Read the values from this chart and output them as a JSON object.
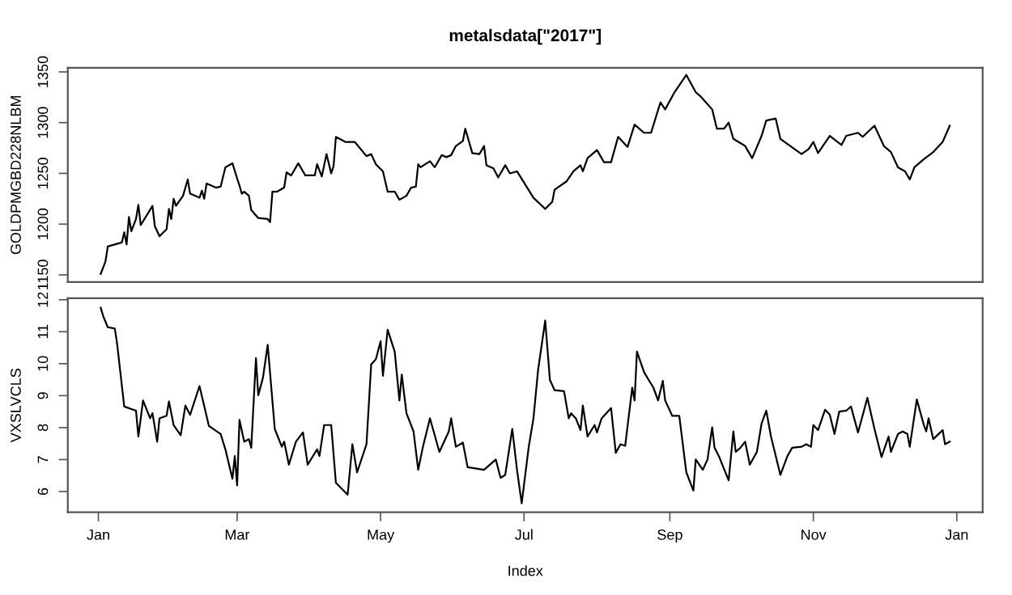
{
  "chart_data": [
    {
      "type": "line",
      "title": "metalsdata[\"2017\"]",
      "ylabel": "GOLDPMGBD228NLBM",
      "color": "#000000",
      "tick_labels": "y",
      "xlim": [
        "2016-12-19",
        "2018-01-12"
      ],
      "ylim": [
        1143,
        1354
      ],
      "yticks": [
        1150,
        1200,
        1250,
        1300,
        1350
      ],
      "x": [
        "2017-01-02",
        "2017-01-04",
        "2017-01-05",
        "2017-01-08",
        "2017-01-11",
        "2017-01-12",
        "2017-01-13",
        "2017-01-14",
        "2017-01-15",
        "2017-01-17",
        "2017-01-18",
        "2017-01-19",
        "2017-01-24",
        "2017-01-25",
        "2017-01-27",
        "2017-01-30",
        "2017-01-31",
        "2017-02-01",
        "2017-02-02",
        "2017-02-03",
        "2017-02-06",
        "2017-02-08",
        "2017-02-09",
        "2017-02-13",
        "2017-02-14",
        "2017-02-15",
        "2017-02-16",
        "2017-02-20",
        "2017-02-22",
        "2017-02-24",
        "2017-02-27",
        "2017-03-01",
        "2017-03-02",
        "2017-03-03",
        "2017-03-04",
        "2017-03-06",
        "2017-03-07",
        "2017-03-10",
        "2017-03-14",
        "2017-03-15",
        "2017-03-16",
        "2017-03-18",
        "2017-03-21",
        "2017-03-22",
        "2017-03-24",
        "2017-03-27",
        "2017-03-30",
        "2017-04-03",
        "2017-04-04",
        "2017-04-06",
        "2017-04-08",
        "2017-04-10",
        "2017-04-11",
        "2017-04-12",
        "2017-04-16",
        "2017-04-20",
        "2017-04-25",
        "2017-04-27",
        "2017-04-29",
        "2017-05-02",
        "2017-05-04",
        "2017-05-07",
        "2017-05-09",
        "2017-05-12",
        "2017-05-14",
        "2017-05-16",
        "2017-05-17",
        "2017-05-18",
        "2017-05-22",
        "2017-05-24",
        "2017-05-27",
        "2017-05-29",
        "2017-05-31",
        "2017-06-02",
        "2017-06-05",
        "2017-06-06",
        "2017-06-09",
        "2017-06-12",
        "2017-06-14",
        "2017-06-15",
        "2017-06-18",
        "2017-06-20",
        "2017-06-23",
        "2017-06-25",
        "2017-06-28",
        "2017-07-05",
        "2017-07-10",
        "2017-07-13",
        "2017-07-14",
        "2017-07-19",
        "2017-07-22",
        "2017-07-25",
        "2017-07-26",
        "2017-07-28",
        "2017-08-01",
        "2017-08-04",
        "2017-08-07",
        "2017-08-10",
        "2017-08-14",
        "2017-08-17",
        "2017-08-21",
        "2017-08-24",
        "2017-08-28",
        "2017-08-30",
        "2017-09-03",
        "2017-09-08",
        "2017-09-12",
        "2017-09-14",
        "2017-09-19",
        "2017-09-21",
        "2017-09-24",
        "2017-09-26",
        "2017-09-28",
        "2017-10-03",
        "2017-10-06",
        "2017-10-10",
        "2017-10-12",
        "2017-10-16",
        "2017-10-18",
        "2017-10-21",
        "2017-10-27",
        "2017-10-30",
        "2017-11-01",
        "2017-11-03",
        "2017-11-08",
        "2017-11-13",
        "2017-11-15",
        "2017-11-20",
        "2017-11-22",
        "2017-11-27",
        "2017-12-01",
        "2017-12-04",
        "2017-12-07",
        "2017-12-10",
        "2017-12-12",
        "2017-12-14",
        "2017-12-18",
        "2017-12-22",
        "2017-12-26",
        "2017-12-29"
      ],
      "values": [
        1151,
        1163,
        1178,
        1180,
        1182,
        1192,
        1180,
        1207,
        1193,
        1205,
        1219,
        1199,
        1218,
        1198,
        1188,
        1195,
        1215,
        1205,
        1225,
        1218,
        1228,
        1244,
        1230,
        1226,
        1233,
        1225,
        1240,
        1236,
        1237,
        1256,
        1260,
        1245,
        1238,
        1230,
        1232,
        1228,
        1214,
        1206,
        1205,
        1202,
        1232,
        1232,
        1236,
        1251,
        1248,
        1260,
        1248,
        1248,
        1259,
        1247,
        1269,
        1250,
        1257,
        1286,
        1281,
        1281,
        1267,
        1269,
        1259,
        1252,
        1232,
        1232,
        1224,
        1228,
        1236,
        1237,
        1259,
        1256,
        1262,
        1256,
        1268,
        1266,
        1268,
        1277,
        1282,
        1294,
        1270,
        1269,
        1277,
        1258,
        1255,
        1246,
        1258,
        1250,
        1252,
        1226,
        1215,
        1222,
        1234,
        1242,
        1252,
        1258,
        1252,
        1265,
        1273,
        1261,
        1261,
        1286,
        1276,
        1298,
        1290,
        1290,
        1320,
        1313,
        1330,
        1347,
        1330,
        1326,
        1313,
        1294,
        1294,
        1300,
        1284,
        1277,
        1265,
        1287,
        1302,
        1304,
        1284,
        1279,
        1269,
        1274,
        1281,
        1270,
        1287,
        1278,
        1287,
        1290,
        1286,
        1297,
        1277,
        1271,
        1256,
        1252,
        1244,
        1256,
        1264,
        1271,
        1281,
        1297
      ]
    },
    {
      "type": "line",
      "ylabel": "VXSLVCLS",
      "xlabel": "Index",
      "color": "#000000",
      "xlim": [
        "2016-12-19",
        "2018-01-12"
      ],
      "ylim": [
        5.35,
        12.05
      ],
      "yticks": [
        6,
        7,
        8,
        9,
        10,
        11,
        12
      ],
      "xticks": [
        {
          "value": "2017-01-01",
          "label": "Jan"
        },
        {
          "value": "2017-03-01",
          "label": "Mar"
        },
        {
          "value": "2017-05-01",
          "label": "May"
        },
        {
          "value": "2017-07-01",
          "label": "Jul"
        },
        {
          "value": "2017-09-01",
          "label": "Sep"
        },
        {
          "value": "2017-11-01",
          "label": "Nov"
        },
        {
          "value": "2018-01-01",
          "label": "Jan"
        }
      ],
      "x": [
        "2017-01-02",
        "2017-01-03",
        "2017-01-05",
        "2017-01-08",
        "2017-01-09",
        "2017-01-12",
        "2017-01-17",
        "2017-01-18",
        "2017-01-20",
        "2017-01-23",
        "2017-01-24",
        "2017-01-26",
        "2017-01-27",
        "2017-01-30",
        "2017-01-31",
        "2017-02-02",
        "2017-02-05",
        "2017-02-07",
        "2017-02-09",
        "2017-02-13",
        "2017-02-17",
        "2017-02-22",
        "2017-02-24",
        "2017-02-27",
        "2017-02-28",
        "2017-03-01",
        "2017-03-02",
        "2017-03-04",
        "2017-03-06",
        "2017-03-07",
        "2017-03-09",
        "2017-03-10",
        "2017-03-12",
        "2017-03-14",
        "2017-03-17",
        "2017-03-20",
        "2017-03-21",
        "2017-03-23",
        "2017-03-26",
        "2017-03-29",
        "2017-03-31",
        "2017-04-04",
        "2017-04-05",
        "2017-04-07",
        "2017-04-10",
        "2017-04-12",
        "2017-04-17",
        "2017-04-19",
        "2017-04-21",
        "2017-04-25",
        "2017-04-27",
        "2017-04-29",
        "2017-05-01",
        "2017-05-02",
        "2017-05-04",
        "2017-05-07",
        "2017-05-09",
        "2017-05-10",
        "2017-05-12",
        "2017-05-15",
        "2017-05-17",
        "2017-05-19",
        "2017-05-22",
        "2017-05-26",
        "2017-05-30",
        "2017-05-31",
        "2017-06-02",
        "2017-06-05",
        "2017-06-07",
        "2017-06-14",
        "2017-06-19",
        "2017-06-21",
        "2017-06-23",
        "2017-06-26",
        "2017-06-28",
        "2017-06-30",
        "2017-07-03",
        "2017-07-05",
        "2017-07-07",
        "2017-07-10",
        "2017-07-12",
        "2017-07-14",
        "2017-07-18",
        "2017-07-20",
        "2017-07-21",
        "2017-07-23",
        "2017-07-25",
        "2017-07-26",
        "2017-07-28",
        "2017-07-31",
        "2017-08-01",
        "2017-08-03",
        "2017-08-07",
        "2017-08-09",
        "2017-08-11",
        "2017-08-13",
        "2017-08-16",
        "2017-08-17",
        "2017-08-18",
        "2017-08-21",
        "2017-08-23",
        "2017-08-25",
        "2017-08-27",
        "2017-08-29",
        "2017-08-30",
        "2017-09-02",
        "2017-09-05",
        "2017-09-08",
        "2017-09-11",
        "2017-09-12",
        "2017-09-15",
        "2017-09-17",
        "2017-09-19",
        "2017-09-20",
        "2017-09-22",
        "2017-09-26",
        "2017-09-28",
        "2017-09-29",
        "2017-10-01",
        "2017-10-03",
        "2017-10-05",
        "2017-10-08",
        "2017-10-10",
        "2017-10-12",
        "2017-10-14",
        "2017-10-18",
        "2017-10-21",
        "2017-10-23",
        "2017-10-27",
        "2017-10-29",
        "2017-10-31",
        "2017-11-01",
        "2017-11-03",
        "2017-11-06",
        "2017-11-08",
        "2017-11-10",
        "2017-11-12",
        "2017-11-15",
        "2017-11-17",
        "2017-11-20",
        "2017-11-24",
        "2017-11-27",
        "2017-11-30",
        "2017-12-03",
        "2017-12-04",
        "2017-12-07",
        "2017-12-09",
        "2017-12-11",
        "2017-12-12",
        "2017-12-15",
        "2017-12-18",
        "2017-12-19",
        "2017-12-20",
        "2017-12-22",
        "2017-12-26",
        "2017-12-27",
        "2017-12-29"
      ],
      "values": [
        11.75,
        11.5,
        11.14,
        11.1,
        10.6,
        8.66,
        8.53,
        7.72,
        8.85,
        8.29,
        8.45,
        7.56,
        8.29,
        8.37,
        8.82,
        8.08,
        7.76,
        8.69,
        8.4,
        9.3,
        8.05,
        7.8,
        7.32,
        6.4,
        7.11,
        6.19,
        8.24,
        7.56,
        7.64,
        7.37,
        10.17,
        9.01,
        9.57,
        10.59,
        7.96,
        7.4,
        7.56,
        6.84,
        7.56,
        7.85,
        6.84,
        7.32,
        7.11,
        8.08,
        8.08,
        6.27,
        5.9,
        7.48,
        6.6,
        7.48,
        9.98,
        10.14,
        10.7,
        9.62,
        11.06,
        10.38,
        8.85,
        9.66,
        8.45,
        7.88,
        6.68,
        7.4,
        8.29,
        7.24,
        7.88,
        8.29,
        7.4,
        7.53,
        6.76,
        6.68,
        7.0,
        6.43,
        6.52,
        7.96,
        6.68,
        5.63,
        7.4,
        8.29,
        9.82,
        11.35,
        9.49,
        9.17,
        9.14,
        8.29,
        8.45,
        8.29,
        7.92,
        8.69,
        7.72,
        8.08,
        7.85,
        8.29,
        8.61,
        7.21,
        7.48,
        7.43,
        9.25,
        8.85,
        10.38,
        9.74,
        9.49,
        9.25,
        8.85,
        9.46,
        8.85,
        8.37,
        8.37,
        6.6,
        6.03,
        7.0,
        6.68,
        7.0,
        8.01,
        7.37,
        7.08,
        6.35,
        7.88,
        7.24,
        7.37,
        7.56,
        6.84,
        7.24,
        8.13,
        8.53,
        7.72,
        6.52,
        7.11,
        7.37,
        7.4,
        7.48,
        7.4,
        8.08,
        7.92,
        8.56,
        8.4,
        7.8,
        8.5,
        8.53,
        8.66,
        7.85,
        8.93,
        7.96,
        7.08,
        7.72,
        7.24,
        7.8,
        7.88,
        7.8,
        7.4,
        8.88,
        8.08,
        7.88,
        8.29,
        7.64,
        7.92,
        7.48,
        7.56
      ]
    }
  ]
}
